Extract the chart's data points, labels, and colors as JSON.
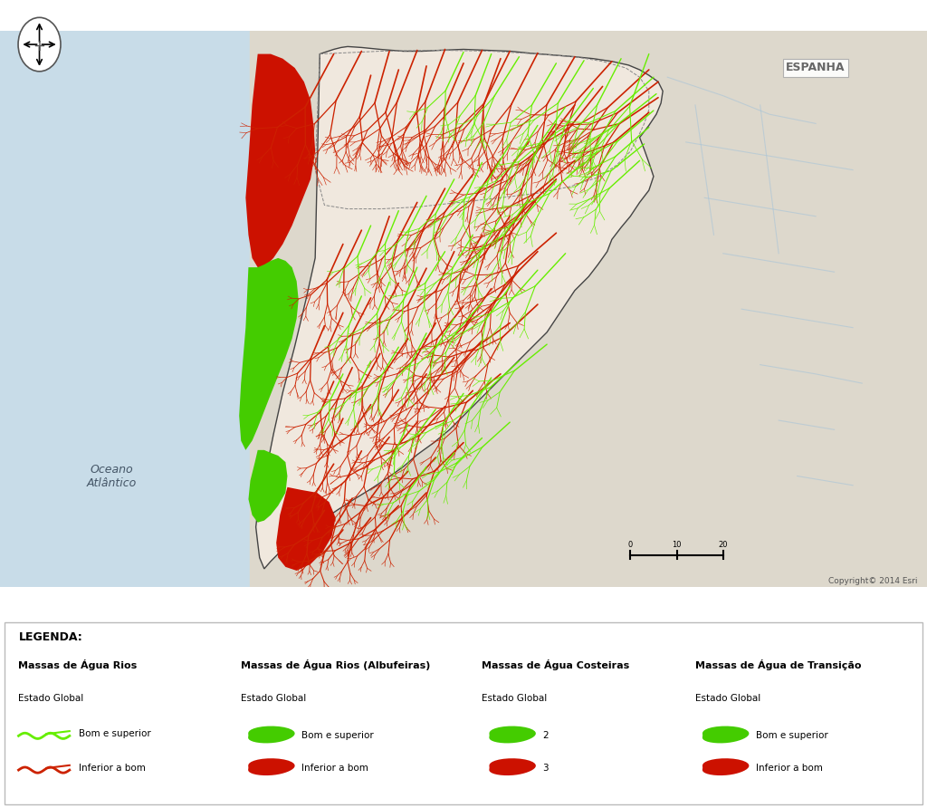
{
  "map_bg_ocean": "#c8dce8",
  "map_bg_land": "#ddd8cc",
  "watershed_fill": "#f0e8de",
  "watershed_edge": "#444444",
  "river_bad": "#cc2200",
  "river_good": "#66ee00",
  "coastal_red": "#cc1100",
  "coastal_green": "#44cc00",
  "spain_rivers": "#a8c4d8",
  "spain_label": "ESPANHA",
  "ocean_label_1": "Oceano",
  "ocean_label_2": "Atlântico",
  "copyright_text": "Copyright© 2014 Esri",
  "legend_title": "LEGENDA:",
  "legend_col1_title": "Massas de Água Rios",
  "legend_col2_title": "Massas de Água Rios (Albufeiras)",
  "legend_col3_title": "Massas de Água Costeiras",
  "legend_col4_title": "Massas de Água de Transição",
  "legend_estado_global": "Estado Global",
  "legend_bom": "Bom e superior",
  "legend_inferior": "Inferior a bom",
  "legend_num2": "2",
  "legend_num3": "3",
  "figsize": [
    10.24,
    8.92
  ],
  "dpi": 100,
  "watershed": {
    "x": [
      0.345,
      0.36,
      0.368,
      0.375,
      0.39,
      0.41,
      0.435,
      0.455,
      0.475,
      0.5,
      0.525,
      0.55,
      0.57,
      0.595,
      0.62,
      0.64,
      0.66,
      0.678,
      0.69,
      0.7,
      0.71,
      0.715,
      0.713,
      0.708,
      0.7,
      0.69,
      0.695,
      0.7,
      0.705,
      0.7,
      0.69,
      0.68,
      0.67,
      0.66,
      0.655,
      0.645,
      0.635,
      0.62,
      0.61,
      0.6,
      0.59,
      0.575,
      0.56,
      0.545,
      0.53,
      0.515,
      0.5,
      0.485,
      0.468,
      0.45,
      0.435,
      0.418,
      0.4,
      0.382,
      0.365,
      0.35,
      0.335,
      0.322,
      0.31,
      0.3,
      0.292,
      0.285,
      0.28,
      0.278,
      0.276,
      0.278,
      0.282,
      0.288,
      0.295,
      0.305,
      0.318,
      0.33,
      0.34,
      0.345
    ],
    "y": [
      0.975,
      0.98,
      0.982,
      0.983,
      0.982,
      0.98,
      0.978,
      0.978,
      0.979,
      0.98,
      0.979,
      0.978,
      0.976,
      0.974,
      0.972,
      0.97,
      0.967,
      0.963,
      0.958,
      0.952,
      0.945,
      0.935,
      0.922,
      0.91,
      0.898,
      0.885,
      0.872,
      0.858,
      0.843,
      0.828,
      0.815,
      0.8,
      0.788,
      0.775,
      0.762,
      0.748,
      0.735,
      0.72,
      0.705,
      0.69,
      0.675,
      0.66,
      0.645,
      0.63,
      0.615,
      0.6,
      0.585,
      0.57,
      0.556,
      0.543,
      0.53,
      0.518,
      0.506,
      0.495,
      0.484,
      0.474,
      0.464,
      0.455,
      0.445,
      0.436,
      0.428,
      0.42,
      0.432,
      0.448,
      0.465,
      0.482,
      0.5,
      0.53,
      0.565,
      0.61,
      0.66,
      0.71,
      0.755,
      0.975
    ]
  },
  "coast_red": {
    "x": [
      0.278,
      0.292,
      0.305,
      0.318,
      0.328,
      0.335,
      0.338,
      0.34,
      0.335,
      0.325,
      0.315,
      0.305,
      0.295,
      0.285,
      0.278,
      0.272,
      0.268,
      0.265,
      0.268,
      0.272,
      0.278
    ],
    "y": [
      0.975,
      0.975,
      0.97,
      0.96,
      0.945,
      0.925,
      0.9,
      0.87,
      0.84,
      0.815,
      0.79,
      0.77,
      0.755,
      0.745,
      0.745,
      0.755,
      0.78,
      0.82,
      0.86,
      0.92,
      0.975
    ]
  },
  "coast_green": {
    "x": [
      0.268,
      0.278,
      0.285,
      0.292,
      0.3,
      0.308,
      0.315,
      0.32,
      0.322,
      0.32,
      0.315,
      0.308,
      0.3,
      0.292,
      0.285,
      0.278,
      0.272,
      0.265,
      0.26,
      0.258,
      0.26,
      0.265,
      0.268
    ],
    "y": [
      0.745,
      0.745,
      0.748,
      0.752,
      0.755,
      0.752,
      0.745,
      0.73,
      0.71,
      0.69,
      0.668,
      0.648,
      0.628,
      0.608,
      0.59,
      0.572,
      0.558,
      0.548,
      0.558,
      0.585,
      0.62,
      0.68,
      0.745
    ]
  },
  "estuary_red": {
    "x": [
      0.31,
      0.325,
      0.342,
      0.355,
      0.362,
      0.358,
      0.348,
      0.335,
      0.32,
      0.308,
      0.3,
      0.298,
      0.302,
      0.31
    ],
    "y": [
      0.508,
      0.505,
      0.502,
      0.492,
      0.475,
      0.455,
      0.438,
      0.425,
      0.418,
      0.422,
      0.432,
      0.448,
      0.478,
      0.508
    ]
  },
  "estuary_green": {
    "x": [
      0.278,
      0.285,
      0.292,
      0.3,
      0.308,
      0.31,
      0.308,
      0.3,
      0.292,
      0.285,
      0.278,
      0.272,
      0.268,
      0.27,
      0.275,
      0.278
    ],
    "y": [
      0.548,
      0.548,
      0.545,
      0.542,
      0.535,
      0.52,
      0.502,
      0.488,
      0.478,
      0.472,
      0.47,
      0.478,
      0.495,
      0.515,
      0.535,
      0.548
    ]
  },
  "sub_watershed1": {
    "x": [
      0.345,
      0.41,
      0.475,
      0.53,
      0.58,
      0.62,
      0.65,
      0.675,
      0.69,
      0.7,
      0.7,
      0.695,
      0.688,
      0.68,
      0.665,
      0.645,
      0.615,
      0.58,
      0.54,
      0.495,
      0.45,
      0.41,
      0.375,
      0.35,
      0.34,
      0.345
    ],
    "y": [
      0.975,
      0.978,
      0.979,
      0.978,
      0.975,
      0.972,
      0.967,
      0.96,
      0.95,
      0.935,
      0.915,
      0.9,
      0.885,
      0.87,
      0.855,
      0.842,
      0.832,
      0.825,
      0.82,
      0.815,
      0.81,
      0.808,
      0.808,
      0.812,
      0.85,
      0.975
    ]
  }
}
